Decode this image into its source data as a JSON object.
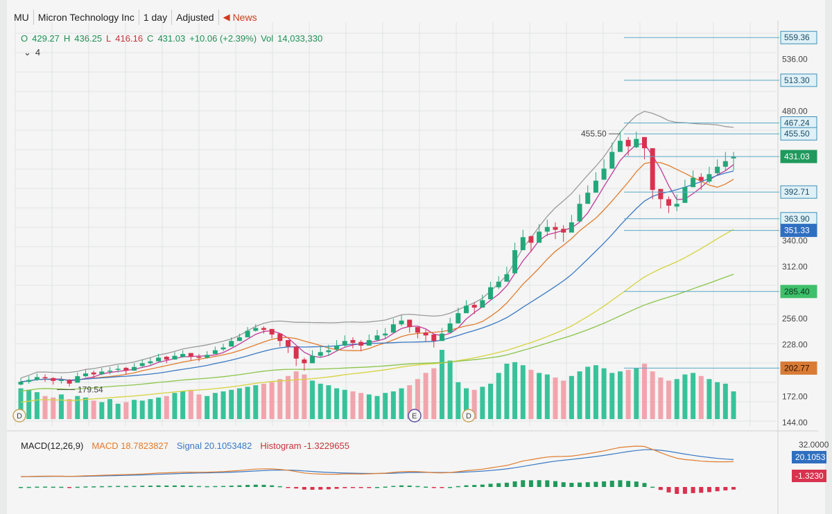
{
  "header": {
    "symbol": "MU",
    "name": "Micron Technology Inc",
    "interval": "1 day",
    "adjustment": "Adjusted",
    "news_label": "News"
  },
  "ohlc_bar": {
    "open_label": "O",
    "open": "429.27",
    "high_label": "H",
    "high": "436.25",
    "low_label": "L",
    "low": "416.16",
    "close_label": "C",
    "close": "431.03",
    "change": "+10.06 (+2.39%)",
    "volume_label": "Vol",
    "volume": "14,033,330"
  },
  "indicator_count": "4",
  "macd_legend": {
    "name": "MACD(12,26,9)",
    "macd": "MACD 18.7823827",
    "signal": "Signal 20.1053482",
    "histogram": "Histogram -1.3229655"
  },
  "colors": {
    "up": "#22a77a",
    "down": "#d8324f",
    "vol_up": "#38c29a",
    "vol_down": "#f2a4ad",
    "bb": "#9a9a9a",
    "ma_fast": "#c2399a",
    "ma_mid": "#e27b2d",
    "ma_blue": "#3a78c4",
    "ma_yellow": "#d6d23c",
    "ma_green": "#8bc34a",
    "ma_brown": "#c96a3a"
  },
  "chart_data": {
    "type": "candlestick",
    "interval": "1 day",
    "y_axis": {
      "ticks": [
        "536.00",
        "480.00",
        "340.00",
        "312.00",
        "256.00",
        "228.00",
        "172.00",
        "144.00"
      ],
      "range": [
        144,
        570
      ]
    },
    "price_labels": [
      {
        "value": 559.36,
        "text": "559.36",
        "style": "outline"
      },
      {
        "value": 513.3,
        "text": "513.30",
        "style": "outline"
      },
      {
        "value": 467.24,
        "text": "467.24",
        "style": "outline"
      },
      {
        "value": 455.5,
        "text": "455.50",
        "style": "outline"
      },
      {
        "value": 431.03,
        "text": "431.03",
        "style": "green-fill"
      },
      {
        "value": 392.71,
        "text": "392.71",
        "style": "outline"
      },
      {
        "value": 363.9,
        "text": "363.90",
        "style": "outline"
      },
      {
        "value": 351.33,
        "text": "351.33",
        "style": "blue-fill"
      },
      {
        "value": 285.4,
        "text": "285.40",
        "style": "light-green-fill"
      },
      {
        "value": 202.77,
        "text": "202.77",
        "style": "orange-fill"
      }
    ],
    "annotations": [
      {
        "text": "455.50",
        "kind": "high-marker",
        "value": 455.5
      },
      {
        "text": "179.54",
        "kind": "low-marker",
        "value": 179.54
      }
    ],
    "event_markers": [
      "D",
      "E",
      "D"
    ],
    "closes": [
      188,
      190,
      193,
      192,
      189,
      190,
      186,
      194,
      197,
      196,
      199,
      200,
      202,
      200,
      204,
      208,
      210,
      214,
      212,
      216,
      218,
      215,
      214,
      217,
      222,
      225,
      232,
      236,
      243,
      246,
      244,
      239,
      232,
      226,
      213,
      208,
      216,
      220,
      222,
      227,
      232,
      230,
      227,
      233,
      238,
      240,
      250,
      254,
      247,
      241,
      238,
      232,
      240,
      251,
      262,
      270,
      268,
      276,
      290,
      296,
      304,
      330,
      344,
      338,
      350,
      355,
      352,
      349,
      360,
      380,
      392,
      405,
      418,
      436,
      448,
      442,
      450,
      440,
      395,
      385,
      378,
      380,
      398,
      408,
      405,
      412,
      420,
      426,
      431
    ],
    "ranges": [
      [
        184,
        192
      ],
      [
        186,
        194
      ],
      [
        189,
        197
      ],
      [
        188,
        196
      ],
      [
        185,
        193
      ],
      [
        186,
        194
      ],
      [
        183,
        191
      ],
      [
        190,
        198
      ],
      [
        193,
        201
      ],
      [
        192,
        200
      ],
      [
        195,
        203
      ],
      [
        196,
        204
      ],
      [
        198,
        206
      ],
      [
        196,
        204
      ],
      [
        200,
        208
      ],
      [
        204,
        212
      ],
      [
        206,
        214
      ],
      [
        210,
        218
      ],
      [
        208,
        216
      ],
      [
        212,
        220
      ],
      [
        214,
        222
      ],
      [
        211,
        219
      ],
      [
        210,
        218
      ],
      [
        213,
        221
      ],
      [
        218,
        226
      ],
      [
        221,
        229
      ],
      [
        228,
        236
      ],
      [
        232,
        240
      ],
      [
        239,
        247
      ],
      [
        242,
        250
      ],
      [
        240,
        248
      ],
      [
        235,
        243
      ],
      [
        226,
        236
      ],
      [
        219,
        230
      ],
      [
        205,
        220
      ],
      [
        200,
        214
      ],
      [
        210,
        222
      ],
      [
        214,
        226
      ],
      [
        216,
        228
      ],
      [
        221,
        233
      ],
      [
        226,
        238
      ],
      [
        224,
        236
      ],
      [
        221,
        233
      ],
      [
        227,
        239
      ],
      [
        232,
        244
      ],
      [
        234,
        246
      ],
      [
        244,
        256
      ],
      [
        248,
        260
      ],
      [
        241,
        253
      ],
      [
        235,
        247
      ],
      [
        231,
        244
      ],
      [
        225,
        238
      ],
      [
        233,
        246
      ],
      [
        244,
        257
      ],
      [
        255,
        268
      ],
      [
        263,
        276
      ],
      [
        261,
        274
      ],
      [
        269,
        282
      ],
      [
        282,
        296
      ],
      [
        288,
        302
      ],
      [
        296,
        312
      ],
      [
        320,
        338
      ],
      [
        334,
        352
      ],
      [
        328,
        346
      ],
      [
        340,
        358
      ],
      [
        345,
        363
      ],
      [
        342,
        360
      ],
      [
        339,
        357
      ],
      [
        350,
        368
      ],
      [
        370,
        390
      ],
      [
        382,
        400
      ],
      [
        395,
        414
      ],
      [
        408,
        428
      ],
      [
        426,
        446
      ],
      [
        438,
        458
      ],
      [
        432,
        452
      ],
      [
        440,
        458
      ],
      [
        428,
        452
      ],
      [
        385,
        410
      ],
      [
        375,
        395
      ],
      [
        370,
        388
      ],
      [
        372,
        390
      ],
      [
        388,
        406
      ],
      [
        398,
        416
      ],
      [
        395,
        413
      ],
      [
        402,
        420
      ],
      [
        410,
        428
      ],
      [
        416,
        436
      ],
      [
        416,
        436
      ]
    ],
    "opens": [
      185,
      188,
      190,
      193,
      192,
      189,
      190,
      187,
      194,
      198,
      196,
      199,
      201,
      203,
      200,
      205,
      208,
      210,
      215,
      212,
      215,
      219,
      215,
      214,
      218,
      223,
      226,
      232,
      236,
      243,
      246,
      245,
      240,
      233,
      226,
      212,
      208,
      216,
      220,
      223,
      227,
      233,
      231,
      227,
      233,
      238,
      241,
      250,
      255,
      247,
      241,
      239,
      232,
      241,
      251,
      262,
      271,
      268,
      277,
      290,
      296,
      305,
      330,
      345,
      338,
      350,
      355,
      353,
      349,
      361,
      380,
      392,
      406,
      418,
      436,
      449,
      441,
      452,
      440,
      396,
      385,
      377,
      381,
      398,
      409,
      404,
      413,
      420,
      429
    ],
    "volume": [
      40,
      38,
      35,
      30,
      28,
      32,
      26,
      30,
      28,
      24,
      22,
      26,
      20,
      22,
      25,
      24,
      26,
      28,
      30,
      34,
      36,
      38,
      32,
      30,
      34,
      36,
      38,
      40,
      42,
      44,
      46,
      48,
      52,
      56,
      62,
      58,
      50,
      46,
      44,
      40,
      38,
      36,
      34,
      32,
      30,
      34,
      36,
      40,
      44,
      52,
      60,
      66,
      90,
      76,
      48,
      40,
      38,
      42,
      46,
      60,
      72,
      74,
      70,
      64,
      60,
      58,
      54,
      50,
      56,
      62,
      68,
      70,
      66,
      60,
      62,
      64,
      66,
      72,
      62,
      54,
      50,
      52,
      58,
      60,
      56,
      52,
      48,
      46,
      36
    ],
    "macd": {
      "macd_value": 18.7823827,
      "signal_value": 20.1053482,
      "histogram_value": -1.3229655,
      "right_labels": [
        "32.0000",
        "20.1053",
        "-1.3230"
      ]
    }
  }
}
